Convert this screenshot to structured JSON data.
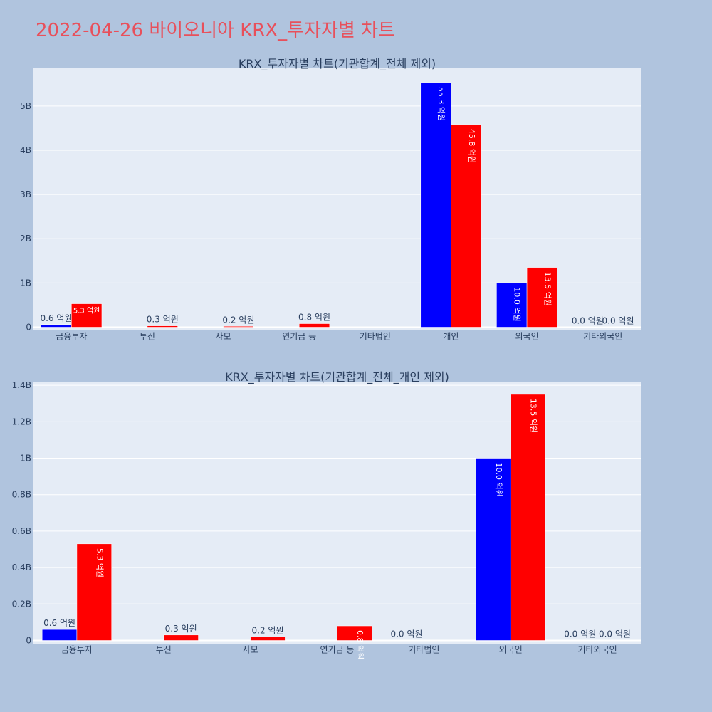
{
  "page": {
    "title": "2022-04-26 바이오니아 KRX_투자자별 차트"
  },
  "colors": {
    "background": "#b0c4de",
    "plot_background": "#e5ecf6",
    "buy": "#0000ff",
    "sell": "#ff0000",
    "title": "#e8505b",
    "text": "#2a3f5f"
  },
  "chart_data": [
    {
      "type": "bar",
      "title": "KRX_투자자별 차트(기관합계_전체 제외)",
      "categories": [
        "금융투자",
        "투신",
        "사모",
        "연기금 등",
        "기타법인",
        "개인",
        "외국인",
        "기타외국인"
      ],
      "ylim": [
        0,
        5850000000
      ],
      "yticks": [
        0,
        1000000000,
        2000000000,
        3000000000,
        4000000000,
        5000000000
      ],
      "ytick_labels": [
        "0",
        "1B",
        "2B",
        "3B",
        "4B",
        "5B"
      ],
      "grid": true,
      "series": [
        {
          "color": "#0000ff",
          "values": [
            60000000,
            0,
            0,
            0,
            0,
            5530000000,
            1000000000,
            0
          ],
          "labels": [
            "0.6 억원",
            "",
            "",
            "",
            "",
            "55.3 억원",
            "10.0 억원",
            "0.0 억원"
          ]
        },
        {
          "color": "#ff0000",
          "values": [
            530000000,
            30000000,
            20000000,
            80000000,
            0,
            4580000000,
            1350000000,
            0
          ],
          "labels": [
            "5.3 억원",
            "0.3 억원",
            "0.2 억원",
            "0.8 억원",
            "",
            "45.8 억원",
            "13.5 억원",
            "0.0 억원"
          ]
        }
      ]
    },
    {
      "type": "bar",
      "title": "KRX_투자자별 차트(기관합계_전체_개인 제외)",
      "categories": [
        "금융투자",
        "투신",
        "사모",
        "연기금 등",
        "기타법인",
        "외국인",
        "기타외국인"
      ],
      "ylim": [
        0,
        1420000000
      ],
      "yticks": [
        0,
        200000000,
        400000000,
        600000000,
        800000000,
        1000000000,
        1200000000,
        1400000000
      ],
      "ytick_labels": [
        "0",
        "0.2B",
        "0.4B",
        "0.6B",
        "0.8B",
        "1B",
        "1.2B",
        "1.4B"
      ],
      "grid": true,
      "series": [
        {
          "color": "#0000ff",
          "values": [
            60000000,
            0,
            0,
            0,
            0,
            1000000000,
            0
          ],
          "labels": [
            "0.6 억원",
            "",
            "",
            "",
            "0.0 억원",
            "10.0 억원",
            "0.0 억원"
          ]
        },
        {
          "color": "#ff0000",
          "values": [
            530000000,
            30000000,
            20000000,
            80000000,
            0,
            1350000000,
            0
          ],
          "labels": [
            "5.3 억원",
            "0.3 억원",
            "0.2 억원",
            "0.8 억원",
            "",
            "13.5 억원",
            "0.0 억원"
          ]
        }
      ]
    }
  ]
}
